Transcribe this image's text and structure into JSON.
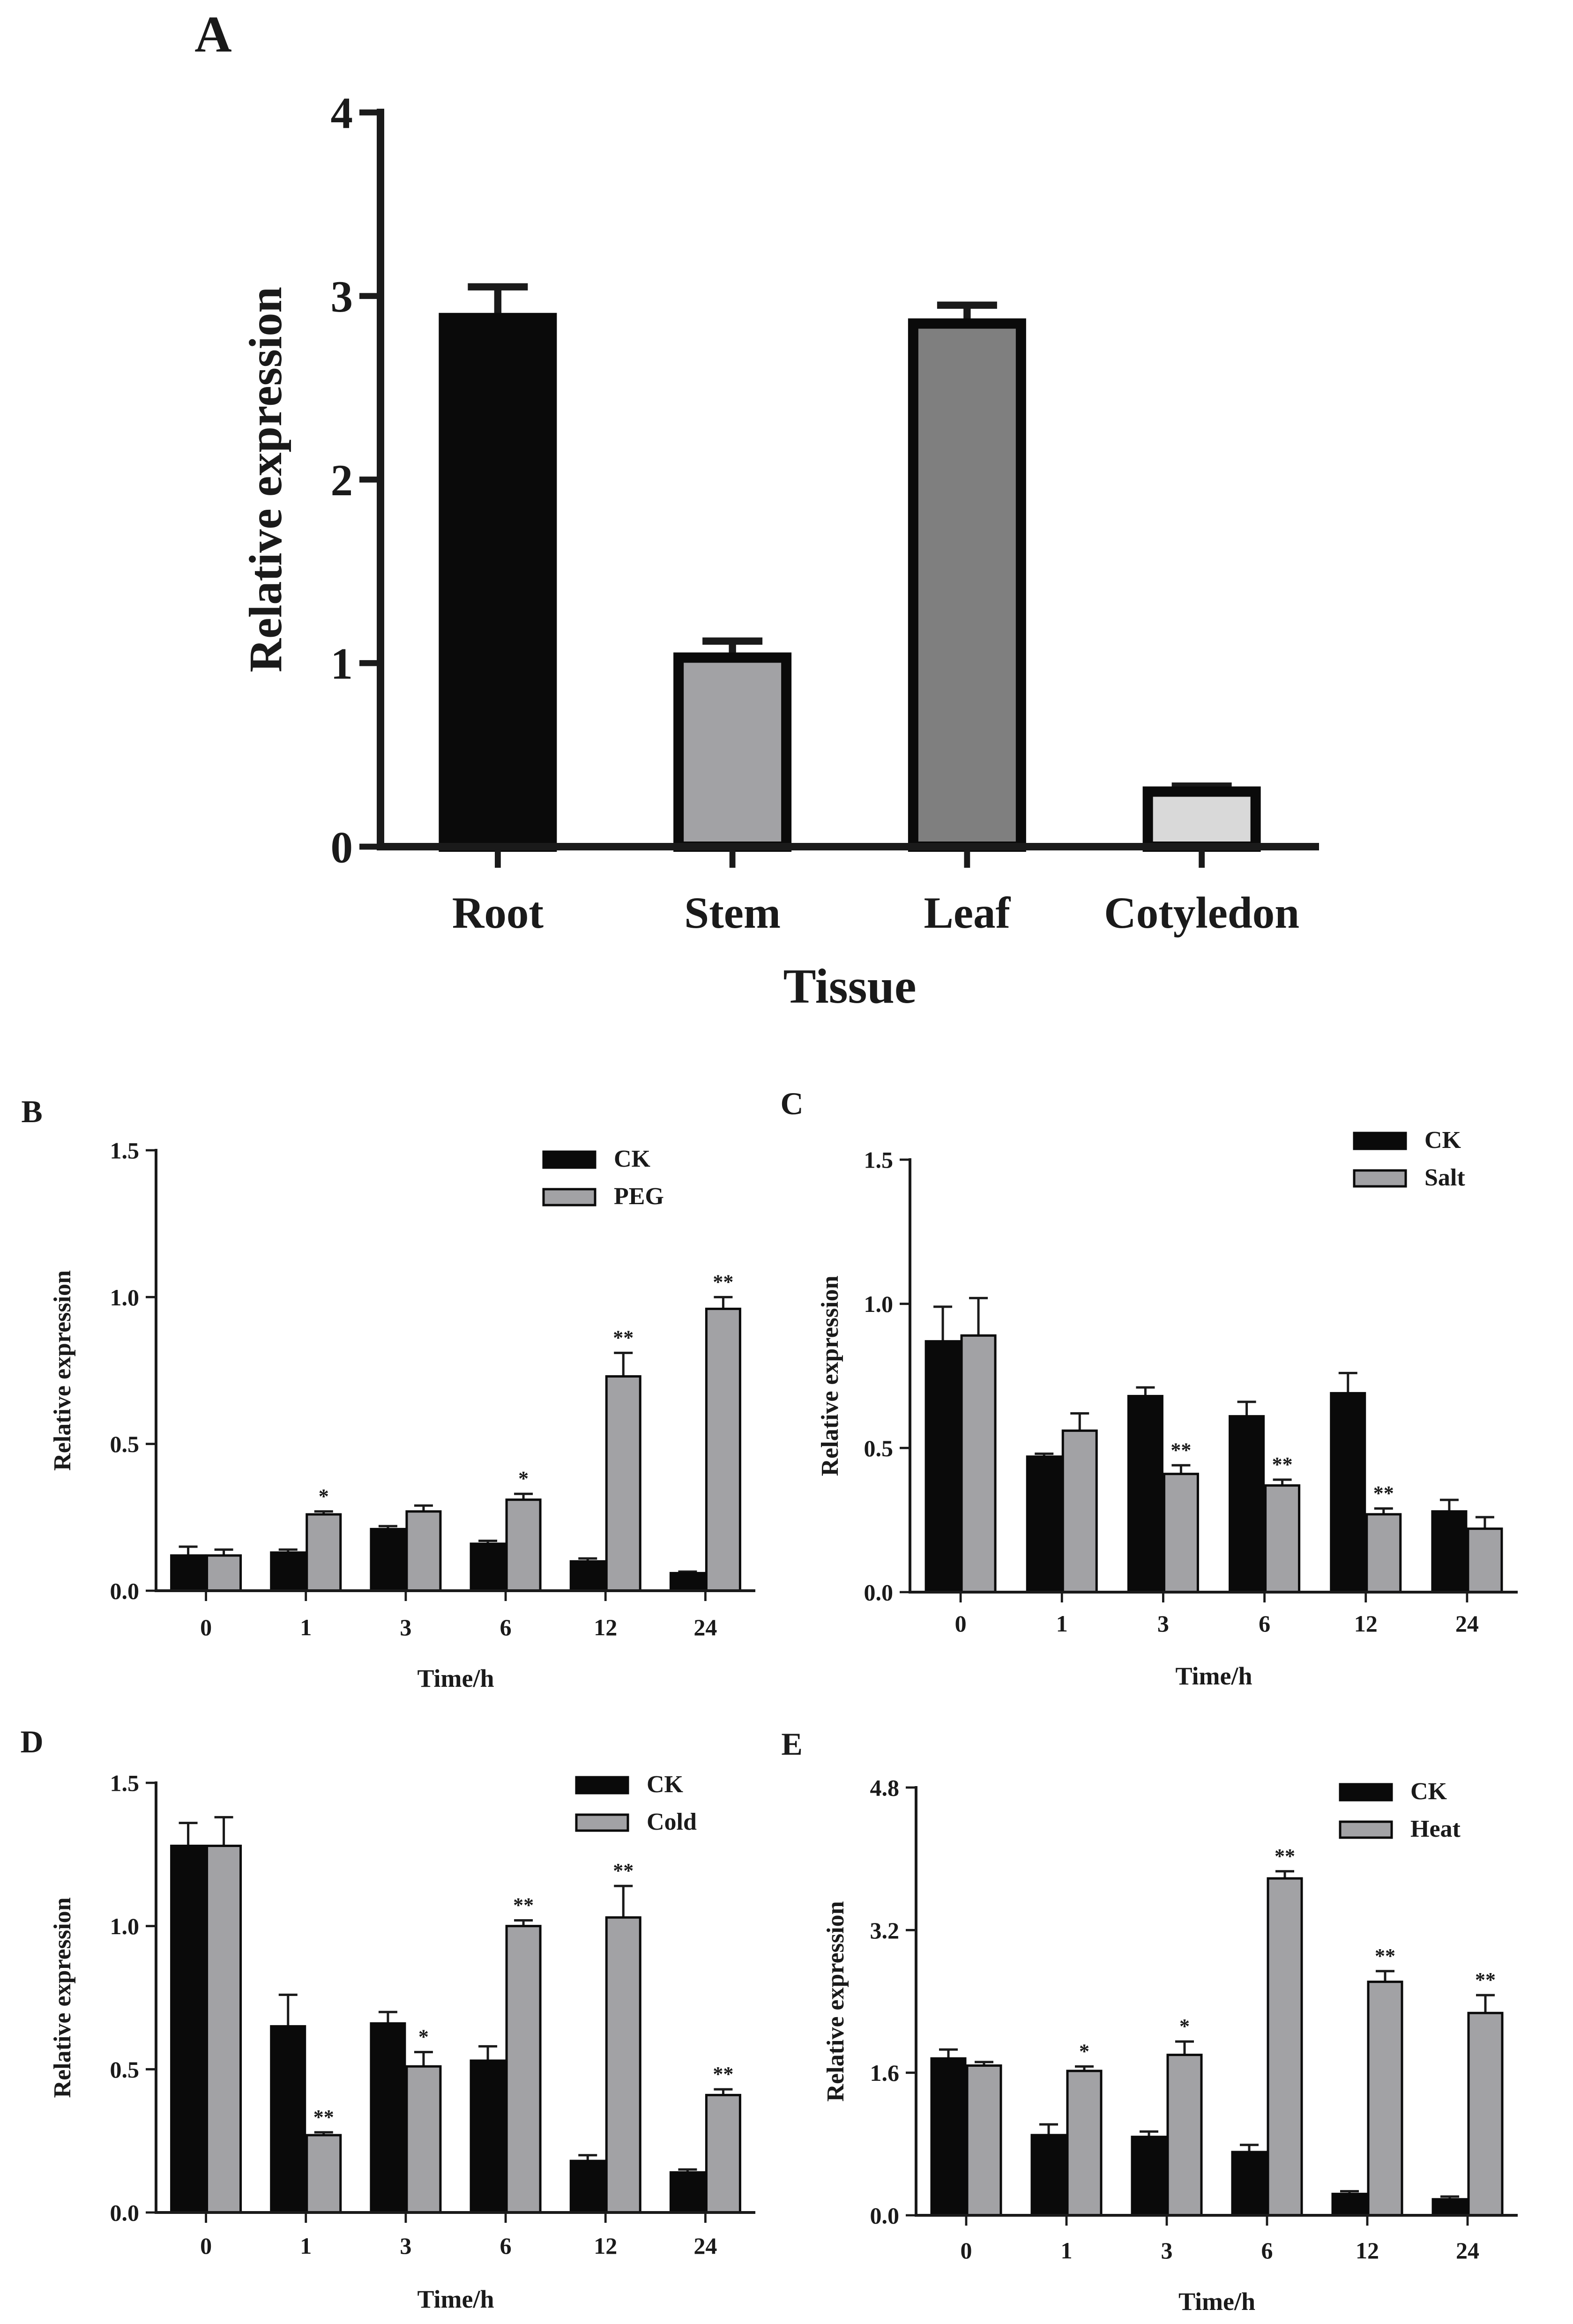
{
  "chart_data": [
    {
      "panel": "A",
      "type": "bar",
      "title": "",
      "xlabel": "Tissue",
      "ylabel": "Relative expression",
      "ylim": [
        0,
        4
      ],
      "yticks": [
        "0",
        "1",
        "2",
        "3",
        "4"
      ],
      "categories": [
        "Root",
        "Stem",
        "Leaf",
        "Cotyledon"
      ],
      "values": [
        2.88,
        1.03,
        2.85,
        0.3
      ],
      "errors": [
        0.17,
        0.09,
        0.1,
        0.03
      ],
      "colors": [
        "#0a0a0a",
        "#a2a2a5",
        "#7f7f7f",
        "#d9d9d9"
      ]
    },
    {
      "panel": "B",
      "type": "bar",
      "xlabel": "Time/h",
      "ylabel": "Relative expression",
      "ylim": [
        0,
        1.5
      ],
      "yticks": [
        "0.0",
        "0.5",
        "1.0",
        "1.5"
      ],
      "categories": [
        "0",
        "1",
        "3",
        "6",
        "12",
        "24"
      ],
      "series": [
        {
          "name": "CK",
          "color": "#0a0a0a",
          "values": [
            0.12,
            0.13,
            0.21,
            0.16,
            0.1,
            0.06
          ],
          "errors": [
            0.03,
            0.01,
            0.01,
            0.01,
            0.01,
            0.005
          ]
        },
        {
          "name": "PEG",
          "color": "#a2a2a5",
          "values": [
            0.12,
            0.26,
            0.27,
            0.31,
            0.73,
            0.96
          ],
          "errors": [
            0.02,
            0.01,
            0.02,
            0.02,
            0.08,
            0.04
          ]
        }
      ],
      "significance": [
        "",
        "*",
        "",
        "*",
        "**",
        "**"
      ]
    },
    {
      "panel": "C",
      "type": "bar",
      "xlabel": "Time/h",
      "ylabel": "Relative expression",
      "ylim": [
        0,
        1.5
      ],
      "yticks": [
        "0.0",
        "0.5",
        "1.0",
        "1.5"
      ],
      "categories": [
        "0",
        "1",
        "3",
        "6",
        "12",
        "24"
      ],
      "series": [
        {
          "name": "CK",
          "color": "#0a0a0a",
          "values": [
            0.87,
            0.47,
            0.68,
            0.61,
            0.69,
            0.28
          ],
          "errors": [
            0.12,
            0.01,
            0.03,
            0.05,
            0.07,
            0.04
          ]
        },
        {
          "name": "Salt",
          "color": "#a2a2a5",
          "values": [
            0.89,
            0.56,
            0.41,
            0.37,
            0.27,
            0.22
          ],
          "errors": [
            0.13,
            0.06,
            0.03,
            0.02,
            0.02,
            0.04
          ]
        }
      ],
      "significance": [
        "",
        "",
        "**",
        "**",
        "**",
        ""
      ]
    },
    {
      "panel": "D",
      "type": "bar",
      "xlabel": "Time/h",
      "ylabel": "Relative expression",
      "ylim": [
        0,
        1.5
      ],
      "yticks": [
        "0.0",
        "0.5",
        "1.0",
        "1.5"
      ],
      "categories": [
        "0",
        "1",
        "3",
        "6",
        "12",
        "24"
      ],
      "series": [
        {
          "name": "CK",
          "color": "#0a0a0a",
          "values": [
            1.28,
            0.65,
            0.66,
            0.53,
            0.18,
            0.14
          ],
          "errors": [
            0.08,
            0.11,
            0.04,
            0.05,
            0.02,
            0.01
          ]
        },
        {
          "name": "Cold",
          "color": "#a2a2a5",
          "values": [
            1.28,
            0.27,
            0.51,
            1.0,
            1.03,
            0.41
          ],
          "errors": [
            0.1,
            0.01,
            0.05,
            0.02,
            0.11,
            0.02
          ]
        }
      ],
      "significance": [
        "",
        "**",
        "*",
        "**",
        "**",
        "**"
      ]
    },
    {
      "panel": "E",
      "type": "bar",
      "xlabel": "Time/h",
      "ylabel": "Relative expression",
      "ylim": [
        0,
        4.8
      ],
      "yticks": [
        "0.0",
        "1.6",
        "3.2",
        "4.8"
      ],
      "categories": [
        "0",
        "1",
        "3",
        "6",
        "12",
        "24"
      ],
      "series": [
        {
          "name": "CK",
          "color": "#0a0a0a",
          "values": [
            1.76,
            0.9,
            0.88,
            0.71,
            0.24,
            0.18
          ],
          "errors": [
            0.1,
            0.12,
            0.06,
            0.08,
            0.03,
            0.03
          ]
        },
        {
          "name": "Heat",
          "color": "#a2a2a5",
          "values": [
            1.68,
            1.62,
            1.8,
            3.78,
            2.62,
            2.27
          ],
          "errors": [
            0.04,
            0.05,
            0.15,
            0.08,
            0.12,
            0.2
          ]
        }
      ],
      "significance": [
        "",
        "*",
        "*",
        "**",
        "**",
        "**"
      ]
    }
  ]
}
